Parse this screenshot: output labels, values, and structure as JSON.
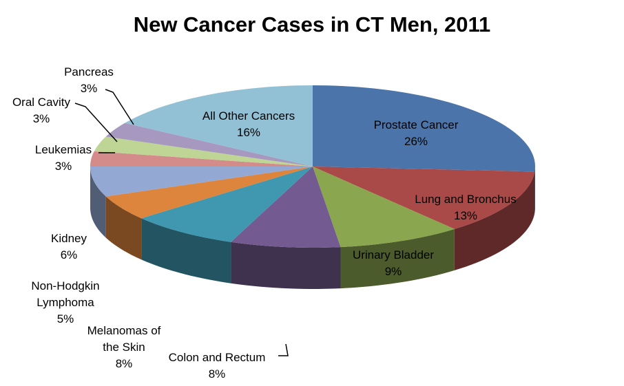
{
  "chart_data": {
    "type": "pie",
    "title": "New Cancer Cases in CT Men, 2011",
    "slices": [
      {
        "label": "Prostate Cancer",
        "lines": [
          "Prostate Cancer"
        ],
        "value": 26,
        "display": "26%",
        "color": "#4a74aa"
      },
      {
        "label": "Lung and Bronchus",
        "lines": [
          "Lung and Bronchus"
        ],
        "value": 13,
        "display": "13%",
        "color": "#aa4a48"
      },
      {
        "label": "Urinary Bladder",
        "lines": [
          "Urinary Bladder"
        ],
        "value": 9,
        "display": "9%",
        "color": "#8aa64f"
      },
      {
        "label": "Colon and Rectum",
        "lines": [
          "Colon and Rectum"
        ],
        "value": 8,
        "display": "8%",
        "color": "#735a90"
      },
      {
        "label": "Melanomas of the Skin",
        "lines": [
          "Melanomas of",
          "the Skin"
        ],
        "value": 8,
        "display": "8%",
        "color": "#3f98b0"
      },
      {
        "label": "Non-Hodgkin Lymphoma",
        "lines": [
          "Non-Hodgkin",
          "Lymphoma"
        ],
        "value": 5,
        "display": "5%",
        "color": "#dd843d"
      },
      {
        "label": "Kidney",
        "lines": [
          "Kidney"
        ],
        "value": 6,
        "display": "6%",
        "color": "#94a8d4"
      },
      {
        "label": "Leukemias",
        "lines": [
          "Leukemias"
        ],
        "value": 3,
        "display": "3%",
        "color": "#d48c8b"
      },
      {
        "label": "Oral Cavity",
        "lines": [
          "Oral Cavity"
        ],
        "value": 3,
        "display": "3%",
        "color": "#bed596"
      },
      {
        "label": "Pancreas",
        "lines": [
          "Pancreas"
        ],
        "value": 3,
        "display": "3%",
        "color": "#a698be"
      },
      {
        "label": "All Other Cancers",
        "lines": [
          "All Other Cancers"
        ],
        "value": 16,
        "display": "16%",
        "color": "#92c1d5"
      }
    ]
  }
}
